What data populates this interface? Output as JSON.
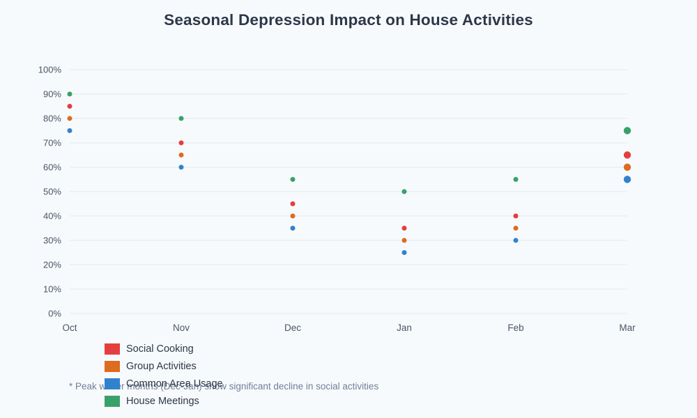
{
  "title": "Seasonal Depression Impact on House Activities",
  "footnote": "* Peak winter months (Dec-Jan) show significant decline in social activities",
  "colors": {
    "background": "#F7FAFC",
    "gridline": "#E2E8F0",
    "title_text": "#2D3748",
    "tick_text": "#4A5568",
    "footnote_text": "#718096"
  },
  "chart_data": {
    "type": "scatter",
    "title": "Seasonal Depression Impact on House Activities",
    "categories": [
      "Oct",
      "Nov",
      "Dec",
      "Jan",
      "Feb",
      "Mar"
    ],
    "series": [
      {
        "name": "Social Cooking",
        "color": "#E53E3E",
        "values": [
          85,
          70,
          45,
          35,
          40,
          65
        ]
      },
      {
        "name": "Group Activities",
        "color": "#DD6B20",
        "values": [
          80,
          65,
          40,
          30,
          35,
          60
        ]
      },
      {
        "name": "Common Area Usage",
        "color": "#3182CE",
        "values": [
          75,
          60,
          35,
          25,
          30,
          55
        ]
      },
      {
        "name": "House Meetings",
        "color": "#38A169",
        "values": [
          90,
          80,
          55,
          50,
          55,
          75
        ]
      }
    ],
    "xlabel": "",
    "ylabel": "",
    "y_ticks": [
      "0%",
      "10%",
      "20%",
      "30%",
      "40%",
      "50%",
      "60%",
      "70%",
      "80%",
      "90%",
      "100%"
    ],
    "ylim": [
      0,
      100
    ],
    "grid": true,
    "vertical_grid": false,
    "legend_position": "bottom-left",
    "marker_radius_px_per_category": [
      3.5,
      3.5,
      3.5,
      3.5,
      3.5,
      5.2
    ]
  }
}
